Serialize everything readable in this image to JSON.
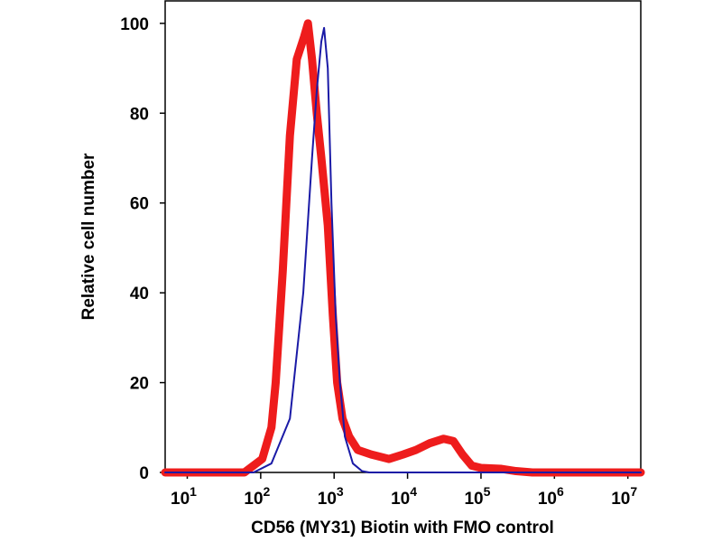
{
  "chart_data": {
    "type": "line",
    "xlabel": "CD56 (MY31) Biotin with FMO control",
    "ylabel": "Relative cell number",
    "xscale": "log",
    "xlim": [
      5,
      15000000
    ],
    "ylim": [
      0,
      105
    ],
    "xticks": [
      {
        "value": 10,
        "label": "10",
        "sup": "1"
      },
      {
        "value": 100,
        "label": "10",
        "sup": "2"
      },
      {
        "value": 1000,
        "label": "10",
        "sup": "3"
      },
      {
        "value": 10000,
        "label": "10",
        "sup": "4"
      },
      {
        "value": 100000,
        "label": "10",
        "sup": "5"
      },
      {
        "value": 1000000,
        "label": "10",
        "sup": "6"
      },
      {
        "value": 10000000,
        "label": "10",
        "sup": "7"
      }
    ],
    "yticks": [
      0,
      20,
      40,
      60,
      80,
      100
    ],
    "series": [
      {
        "color": "#ee1c1c",
        "width": 9,
        "x": [
          5,
          30,
          60,
          105,
          140,
          160,
          200,
          250,
          310,
          390,
          440,
          500,
          580,
          670,
          820,
          960,
          1100,
          1300,
          1600,
          2100,
          3200,
          5600,
          8700,
          13000,
          20000,
          31000,
          42000,
          56000,
          75000,
          100000,
          190000,
          300000,
          500000,
          15000000
        ],
        "values": [
          0,
          0,
          0,
          3,
          10,
          20,
          45,
          75,
          92,
          97,
          100,
          92,
          80,
          70,
          55,
          35,
          20,
          12,
          8,
          5,
          4,
          3,
          4,
          5,
          6.5,
          7.5,
          7,
          4,
          1.5,
          1,
          0.8,
          0.3,
          0,
          0
        ]
      },
      {
        "color": "#1a1aa6",
        "width": 2,
        "x": [
          5,
          80,
          140,
          250,
          380,
          500,
          580,
          670,
          730,
          820,
          920,
          1050,
          1200,
          1400,
          1800,
          2400,
          3000,
          15000000
        ],
        "values": [
          0,
          0,
          2,
          12,
          40,
          70,
          85,
          96,
          99,
          90,
          60,
          35,
          20,
          8,
          2,
          0.3,
          0,
          0
        ]
      }
    ]
  }
}
